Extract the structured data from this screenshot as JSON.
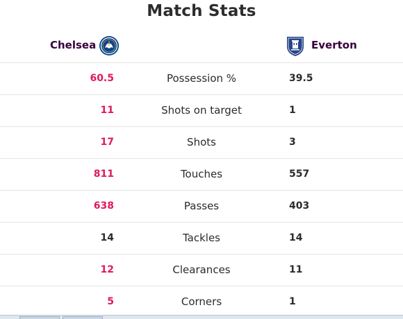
{
  "title": "Match Stats",
  "teams": {
    "home": {
      "name": "Chelsea",
      "crest_icon": "chelsea-crest-icon",
      "color": "#034694"
    },
    "away": {
      "name": "Everton",
      "crest_icon": "everton-crest-icon",
      "color": "#274488"
    }
  },
  "colors": {
    "leader": "#e0195d",
    "neutral": "#2b2b2b"
  },
  "stats": [
    {
      "label": "Possession %",
      "home": "60.5",
      "away": "39.5",
      "home_leads": true
    },
    {
      "label": "Shots on target",
      "home": "11",
      "away": "1",
      "home_leads": true
    },
    {
      "label": "Shots",
      "home": "17",
      "away": "3",
      "home_leads": true
    },
    {
      "label": "Touches",
      "home": "811",
      "away": "557",
      "home_leads": true
    },
    {
      "label": "Passes",
      "home": "638",
      "away": "403",
      "home_leads": true
    },
    {
      "label": "Tackles",
      "home": "14",
      "away": "14",
      "home_leads": false
    },
    {
      "label": "Clearances",
      "home": "12",
      "away": "11",
      "home_leads": true
    },
    {
      "label": "Corners",
      "home": "5",
      "away": "1",
      "home_leads": true
    }
  ]
}
